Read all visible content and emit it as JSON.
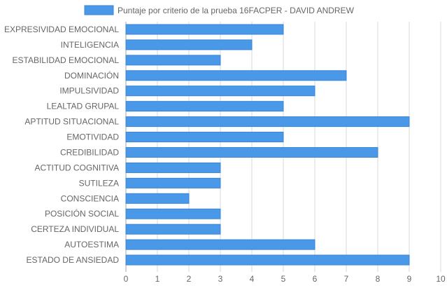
{
  "chart_data": {
    "type": "bar",
    "orientation": "horizontal",
    "legend": {
      "label": "Puntaje por criterio de la prueba 16FACPER - DAVID ANDREW",
      "position": "top"
    },
    "categories": [
      "EXPRESIVIDAD EMOCIONAL",
      "INTELIGENCIA",
      "ESTABILIDAD EMOCIONAL",
      "DOMINACIÓN",
      "IMPULSIVIDAD",
      "LEALTAD GRUPAL",
      "APTITUD SITUACIONAL",
      "EMOTIVIDAD",
      "CREDIBILIDAD",
      "ACTITUD COGNITIVA",
      "SUTILEZA",
      "CONSCIENCIA",
      "POSICIÓN SOCIAL",
      "CERTEZA INDIVIDUAL",
      "AUTOESTIMA",
      "ESTADO DE ANSIEDAD"
    ],
    "series": [
      {
        "name": "Puntaje por criterio de la prueba 16FACPER - DAVID ANDREW",
        "values": [
          5,
          4,
          3,
          7,
          6,
          5,
          9,
          5,
          8,
          3,
          3,
          2,
          3,
          3,
          6,
          9
        ]
      }
    ],
    "xlim": [
      0,
      10
    ],
    "xticks": [
      "0",
      "1",
      "2",
      "3",
      "4",
      "5",
      "6",
      "7",
      "8",
      "9",
      "10"
    ],
    "grid": true,
    "colors": {
      "bar_fill": "#4a98e8",
      "bar_stroke": "#3a85d4"
    }
  }
}
